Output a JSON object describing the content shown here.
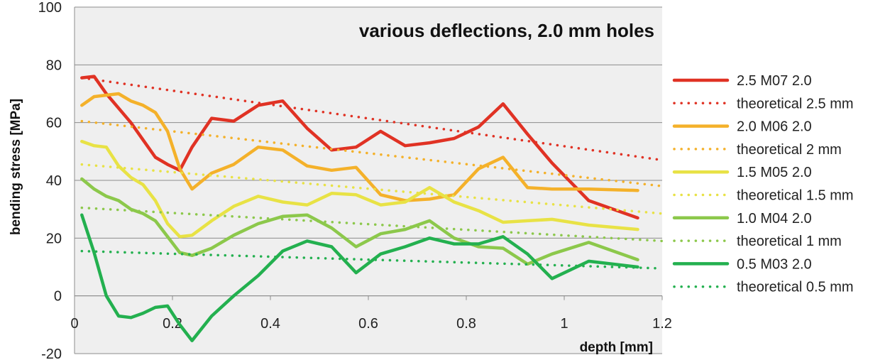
{
  "chart_data": {
    "type": "line",
    "title": "various deflections, 2.0 mm holes",
    "xlabel": "depth [mm]",
    "ylabel": "bending stress [MPa]",
    "xlim": [
      0,
      1.2
    ],
    "ylim": [
      -20,
      100
    ],
    "x_ticks": [
      "0",
      "0.2",
      "0.4",
      "0.6",
      "0.8",
      "1",
      "1.2"
    ],
    "y_ticks": [
      "-20",
      "0",
      "20",
      "40",
      "60",
      "80",
      "100"
    ],
    "grid": "horizontal",
    "legend_position": "right",
    "plot_background": "#efefef",
    "series": [
      {
        "name": "2.5 M07 2.0",
        "style": "solid",
        "color": "#e03224",
        "x": [
          0.015,
          0.04,
          0.065,
          0.09,
          0.115,
          0.14,
          0.165,
          0.19,
          0.215,
          0.24,
          0.28,
          0.325,
          0.375,
          0.425,
          0.475,
          0.525,
          0.575,
          0.625,
          0.675,
          0.725,
          0.775,
          0.825,
          0.875,
          0.925,
          0.975,
          1.05,
          1.15
        ],
        "y": [
          75.5,
          76,
          70,
          65,
          60,
          54,
          48,
          45.5,
          43.5,
          51.5,
          61.5,
          60.5,
          66,
          67.5,
          58,
          50.5,
          51.5,
          57,
          52,
          53,
          54.5,
          58.5,
          66.5,
          56,
          46,
          33,
          27
        ]
      },
      {
        "name": "theoretical 2.5 mm",
        "style": "dotted",
        "color": "#e03224",
        "x": [
          0.015,
          1.2
        ],
        "y": [
          75.5,
          47
        ]
      },
      {
        "name": "2.0 M06 2.0",
        "style": "solid",
        "color": "#f4b12a",
        "x": [
          0.015,
          0.04,
          0.065,
          0.09,
          0.115,
          0.14,
          0.165,
          0.19,
          0.215,
          0.24,
          0.28,
          0.325,
          0.375,
          0.425,
          0.475,
          0.525,
          0.575,
          0.625,
          0.675,
          0.725,
          0.775,
          0.825,
          0.875,
          0.925,
          0.975,
          1.05,
          1.15
        ],
        "y": [
          66,
          69,
          69.5,
          70,
          67.5,
          66,
          63.5,
          57,
          44,
          37,
          42.5,
          45.5,
          51.5,
          50.5,
          45,
          43.5,
          44.5,
          35,
          33,
          33.5,
          35,
          44,
          48,
          37.5,
          37,
          37,
          36.5
        ]
      },
      {
        "name": "theoretical 2 mm",
        "style": "dotted",
        "color": "#f4b12a",
        "x": [
          0.015,
          1.2
        ],
        "y": [
          60.5,
          38
        ]
      },
      {
        "name": "1.5 M05 2.0",
        "style": "solid",
        "color": "#e8e245",
        "x": [
          0.015,
          0.04,
          0.065,
          0.09,
          0.115,
          0.14,
          0.165,
          0.19,
          0.215,
          0.24,
          0.28,
          0.325,
          0.375,
          0.425,
          0.475,
          0.525,
          0.575,
          0.625,
          0.675,
          0.725,
          0.775,
          0.825,
          0.875,
          0.925,
          0.975,
          1.05,
          1.15
        ],
        "y": [
          53.5,
          52,
          51.5,
          45,
          41,
          38.5,
          33,
          25,
          20.5,
          21,
          26,
          31,
          34.5,
          32.5,
          31.5,
          35.5,
          35,
          31.5,
          32.5,
          37.5,
          32.5,
          29.5,
          25.5,
          26,
          26.5,
          24.5,
          23
        ]
      },
      {
        "name": "theoretical 1.5 mm",
        "style": "dotted",
        "color": "#e8e245",
        "x": [
          0.015,
          1.2
        ],
        "y": [
          45.5,
          28.5
        ]
      },
      {
        "name": "1.0 M04 2.0",
        "style": "solid",
        "color": "#8cc84b",
        "x": [
          0.015,
          0.04,
          0.065,
          0.09,
          0.115,
          0.14,
          0.165,
          0.19,
          0.215,
          0.24,
          0.28,
          0.325,
          0.375,
          0.425,
          0.475,
          0.525,
          0.575,
          0.625,
          0.675,
          0.725,
          0.775,
          0.825,
          0.875,
          0.925,
          0.975,
          1.05,
          1.15
        ],
        "y": [
          40.5,
          37,
          34.5,
          33,
          30,
          28.5,
          26,
          20.5,
          15,
          14,
          16.5,
          21,
          25,
          27.5,
          28,
          23.5,
          17,
          21.5,
          23,
          26,
          20,
          17,
          16.5,
          11,
          14.5,
          18.5,
          12.5
        ]
      },
      {
        "name": "theoretical 1 mm",
        "style": "dotted",
        "color": "#8cc84b",
        "x": [
          0.015,
          1.2
        ],
        "y": [
          30.5,
          19
        ]
      },
      {
        "name": "0.5 M03 2.0",
        "style": "solid",
        "color": "#23b04f",
        "x": [
          0.015,
          0.04,
          0.065,
          0.09,
          0.115,
          0.14,
          0.165,
          0.19,
          0.215,
          0.24,
          0.28,
          0.325,
          0.375,
          0.425,
          0.475,
          0.525,
          0.575,
          0.625,
          0.675,
          0.725,
          0.775,
          0.825,
          0.875,
          0.925,
          0.975,
          1.05,
          1.15
        ],
        "y": [
          28,
          15,
          0,
          -7,
          -7.5,
          -6,
          -4,
          -3.5,
          -10,
          -15.5,
          -7,
          0,
          7,
          15.5,
          19,
          17,
          8,
          14.5,
          17,
          20,
          18,
          18,
          20.5,
          14.5,
          6,
          12,
          10
        ]
      },
      {
        "name": "theoretical 0.5 mm",
        "style": "dotted",
        "color": "#23b04f",
        "x": [
          0.015,
          1.2
        ],
        "y": [
          15.5,
          9.5
        ]
      }
    ]
  }
}
